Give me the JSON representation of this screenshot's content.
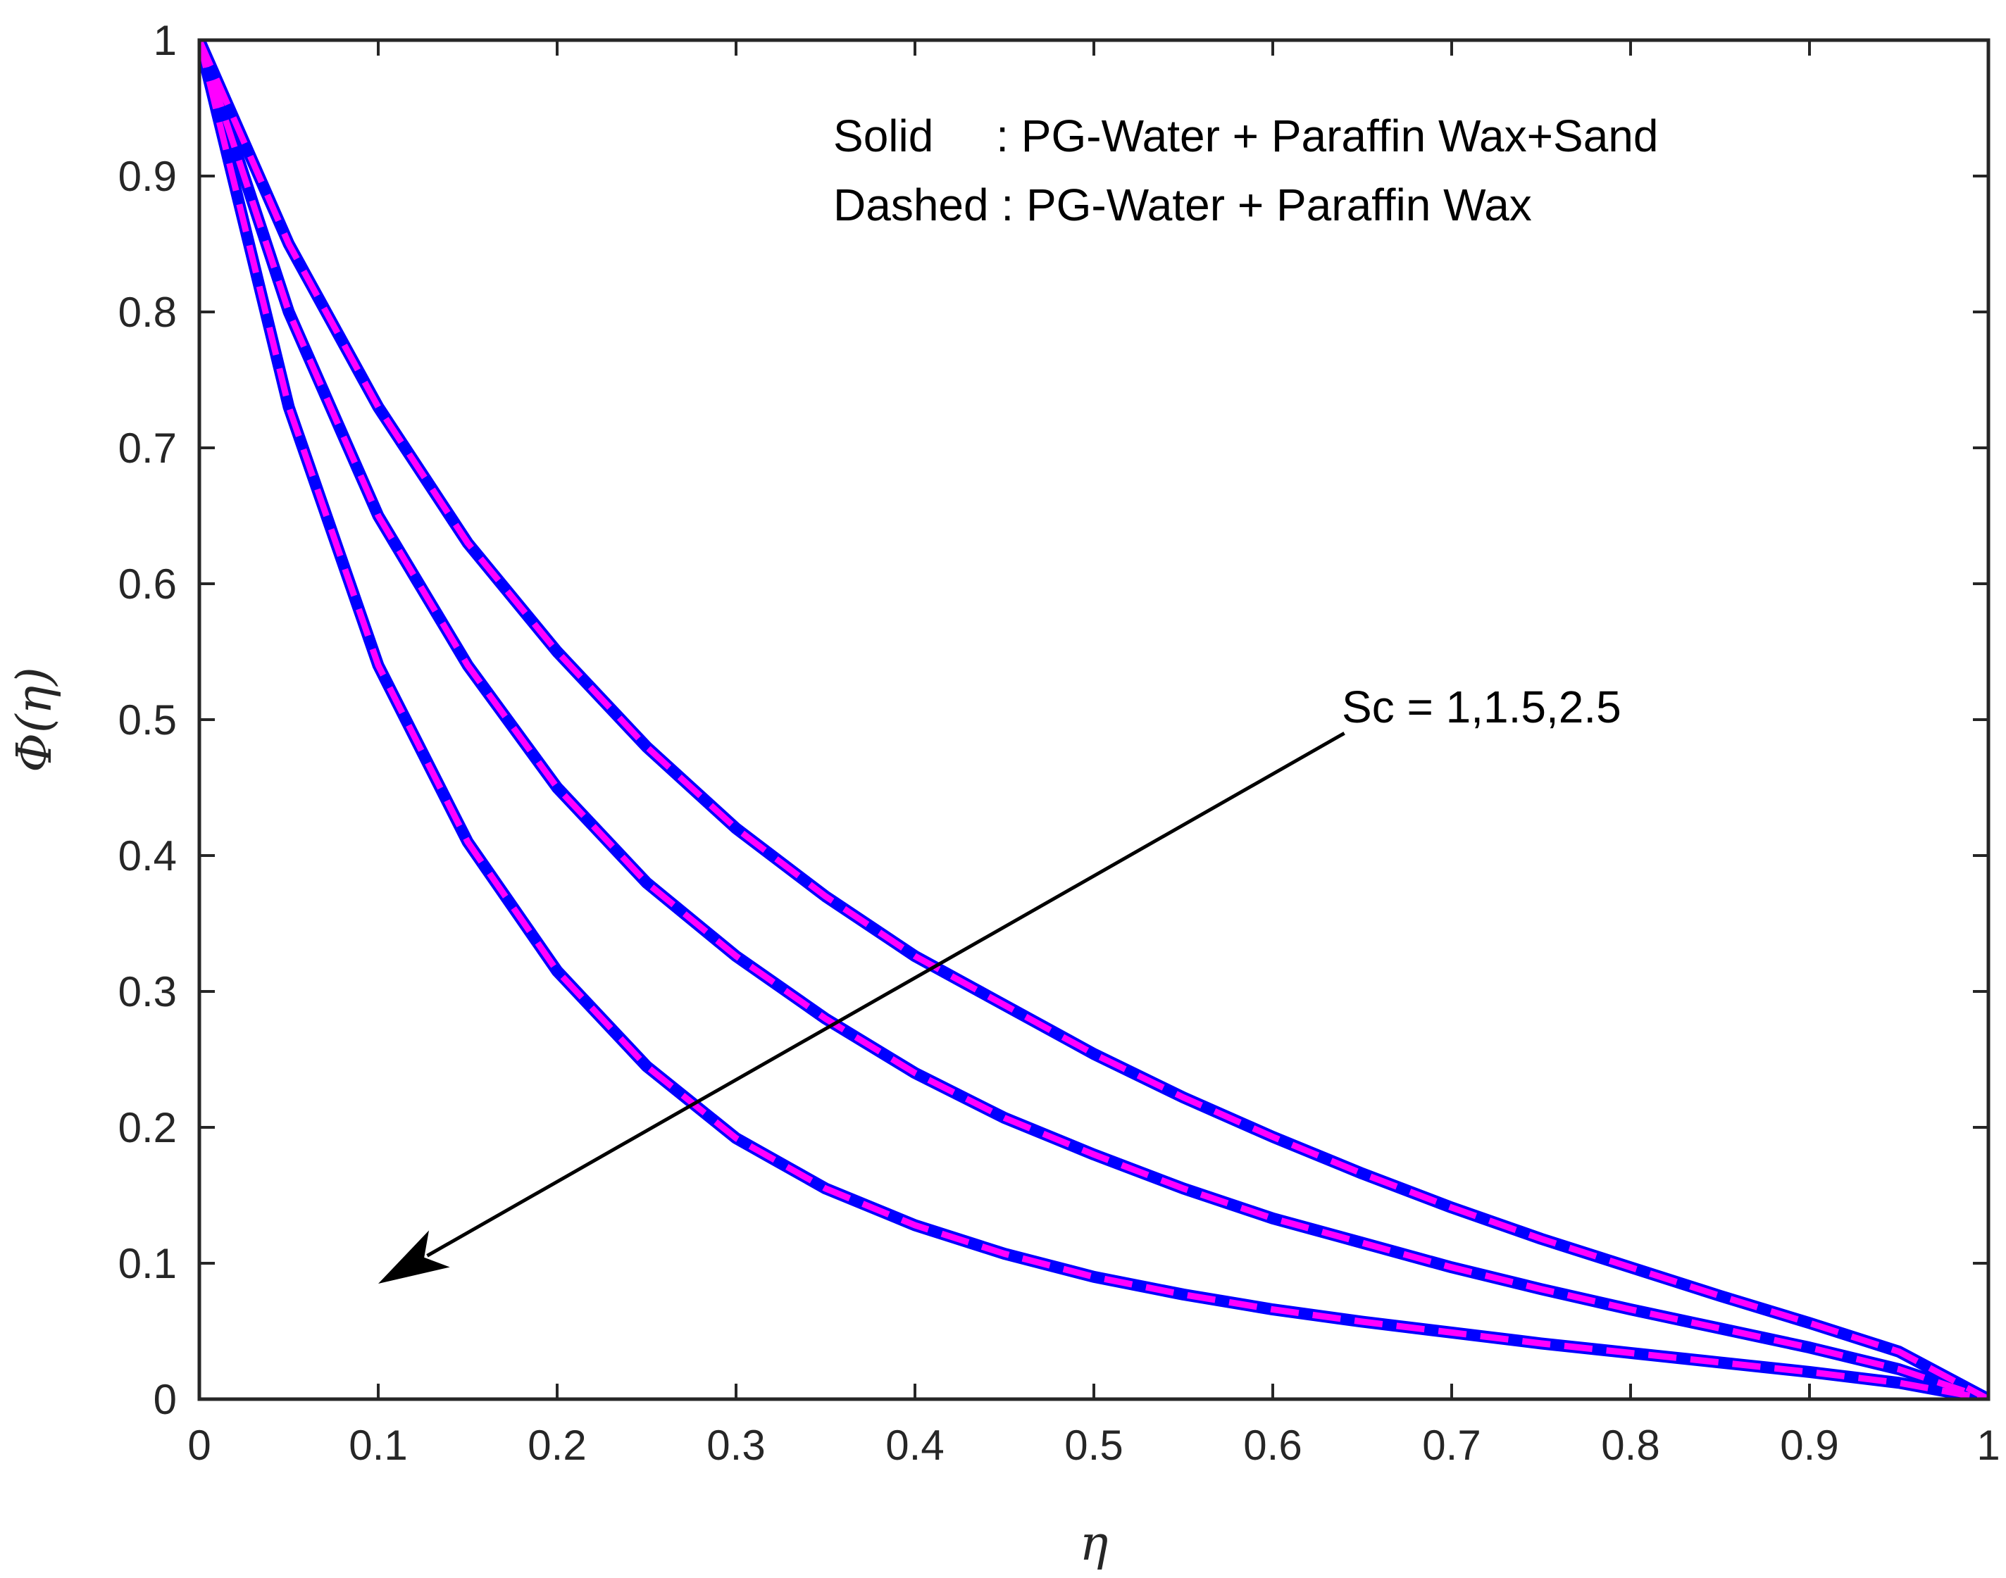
{
  "chart_data": {
    "type": "line",
    "title": "",
    "xlabel": "η",
    "ylabel": "Φ(η)",
    "xlim": [
      0,
      1
    ],
    "ylim": [
      0,
      1
    ],
    "xticks": [
      "0",
      "0.1",
      "0.2",
      "0.3",
      "0.4",
      "0.5",
      "0.6",
      "0.7",
      "0.8",
      "0.9",
      "1"
    ],
    "yticks": [
      "0",
      "0.1",
      "0.2",
      "0.3",
      "0.4",
      "0.5",
      "0.6",
      "0.7",
      "0.8",
      "0.9",
      "1"
    ],
    "grid": false,
    "legend_text": {
      "solid": "Solid     : PG-Water + Paraffin Wax+Sand",
      "dashed": "Dashed : PG-Water + Paraffin Wax"
    },
    "annotation": {
      "text": "Sc = 1,1.5,2.5",
      "arrow_from": [
        0.64,
        0.49
      ],
      "arrow_to": [
        0.1,
        0.085
      ]
    },
    "colors": {
      "solid": "#0000ff",
      "dashed": "#ff00ff",
      "axis": "#262626",
      "arrow": "#000000"
    },
    "x": [
      0,
      0.05,
      0.1,
      0.15,
      0.2,
      0.25,
      0.3,
      0.35,
      0.4,
      0.45,
      0.5,
      0.55,
      0.6,
      0.65,
      0.7,
      0.75,
      0.8,
      0.85,
      0.9,
      0.95,
      1.0
    ],
    "series": [
      {
        "name": "Sc = 1 (Solid)",
        "style": "solid",
        "values": [
          1.0,
          0.85,
          0.73,
          0.63,
          0.55,
          0.48,
          0.42,
          0.37,
          0.326,
          0.29,
          0.254,
          0.222,
          0.193,
          0.166,
          0.141,
          0.118,
          0.097,
          0.076,
          0.056,
          0.035,
          0.0
        ]
      },
      {
        "name": "Sc = 1.5 (Solid)",
        "style": "solid",
        "values": [
          1.0,
          0.8,
          0.65,
          0.54,
          0.45,
          0.38,
          0.326,
          0.28,
          0.24,
          0.207,
          0.18,
          0.155,
          0.133,
          0.115,
          0.097,
          0.081,
          0.066,
          0.052,
          0.038,
          0.022,
          0.0
        ]
      },
      {
        "name": "Sc = 2.5 (Solid)",
        "style": "solid",
        "values": [
          1.0,
          0.73,
          0.54,
          0.41,
          0.315,
          0.245,
          0.192,
          0.155,
          0.128,
          0.107,
          0.09,
          0.077,
          0.066,
          0.057,
          0.049,
          0.041,
          0.034,
          0.027,
          0.02,
          0.012,
          0.0
        ]
      },
      {
        "name": "Sc = 1 (Dashed)",
        "style": "dashed",
        "values": [
          1.0,
          0.85,
          0.73,
          0.63,
          0.55,
          0.48,
          0.42,
          0.37,
          0.326,
          0.29,
          0.254,
          0.222,
          0.193,
          0.166,
          0.141,
          0.118,
          0.097,
          0.076,
          0.056,
          0.035,
          0.0
        ]
      },
      {
        "name": "Sc = 1.5 (Dashed)",
        "style": "dashed",
        "values": [
          1.0,
          0.8,
          0.65,
          0.54,
          0.45,
          0.38,
          0.326,
          0.28,
          0.24,
          0.207,
          0.18,
          0.155,
          0.133,
          0.115,
          0.097,
          0.081,
          0.066,
          0.052,
          0.038,
          0.022,
          0.0
        ]
      },
      {
        "name": "Sc = 2.5 (Dashed)",
        "style": "dashed",
        "values": [
          1.0,
          0.73,
          0.54,
          0.41,
          0.315,
          0.245,
          0.192,
          0.155,
          0.128,
          0.107,
          0.09,
          0.077,
          0.066,
          0.057,
          0.049,
          0.041,
          0.034,
          0.027,
          0.02,
          0.012,
          0.0
        ]
      }
    ]
  }
}
